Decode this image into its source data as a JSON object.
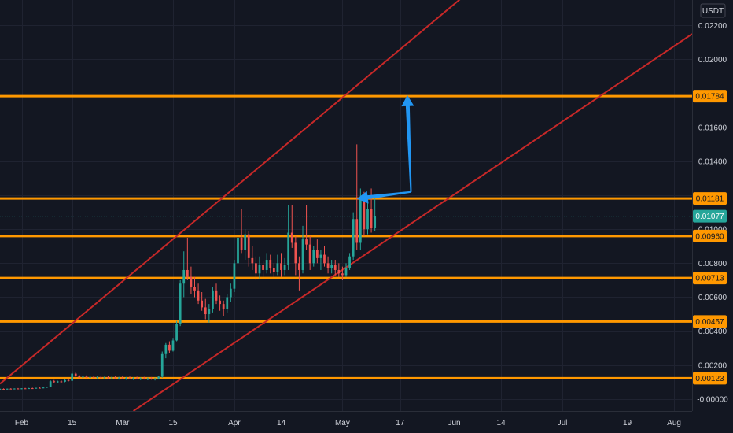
{
  "colors": {
    "background": "#131722",
    "grid": "#1f2331",
    "axis_text": "#d1d4dc",
    "level_line": "#ff9800",
    "channel_line": "#c62828",
    "arrow": "#2196f3",
    "candle_up": "#26a69a",
    "candle_down": "#ef5350",
    "current_price_bg": "#26a69a"
  },
  "chart_data": {
    "type": "candlestick",
    "price_unit": "USDT",
    "ylim": [
      -0.0007,
      0.0235
    ],
    "y_ticks": [
      "0.02200",
      "0.02000",
      "0.01800",
      "0.01600",
      "0.01400",
      "0.01200",
      "0.01000",
      "0.00800",
      "0.00600",
      "0.00400",
      "0.00200",
      "-0.00000"
    ],
    "x_ticks": [
      {
        "label": "Feb",
        "day": 0
      },
      {
        "label": "15",
        "day": 14
      },
      {
        "label": "Mar",
        "day": 28
      },
      {
        "label": "15",
        "day": 42
      },
      {
        "label": "Apr",
        "day": 59
      },
      {
        "label": "14",
        "day": 72
      },
      {
        "label": "May",
        "day": 89
      },
      {
        "label": "17",
        "day": 105
      },
      {
        "label": "Jun",
        "day": 120
      },
      {
        "label": "14",
        "day": 133
      },
      {
        "label": "Jul",
        "day": 150
      },
      {
        "label": "19",
        "day": 168
      },
      {
        "label": "Aug",
        "day": 181
      }
    ],
    "x_range_days": [
      -6,
      186
    ],
    "levels": [
      "0.01784",
      "0.01181",
      "0.00960",
      "0.00713",
      "0.00457",
      "0.00123"
    ],
    "current_price": "0.01077",
    "channel": {
      "upper": [
        [
          -6,
          0.0009
        ],
        [
          127,
          0.0245
        ]
      ],
      "lower": [
        [
          31,
          -0.0007
        ],
        [
          186,
          0.0215
        ]
      ]
    },
    "arrows": [
      {
        "name": "arrow-left",
        "from": [
          108,
          0.0122
        ],
        "to": [
          93,
          0.0118
        ]
      },
      {
        "name": "arrow-up",
        "from": [
          108,
          0.0122
        ],
        "to": [
          107,
          0.0179
        ]
      }
    ],
    "candles": [
      [
        -6,
        0.00058,
        0.00062,
        0.00056,
        0.0006
      ],
      [
        -5,
        0.0006,
        0.00063,
        0.00057,
        0.00059
      ],
      [
        -4,
        0.00059,
        0.00062,
        0.00056,
        0.00061
      ],
      [
        -3,
        0.00061,
        0.00064,
        0.00058,
        0.0006
      ],
      [
        -2,
        0.0006,
        0.00063,
        0.00057,
        0.00062
      ],
      [
        -1,
        0.00062,
        0.00065,
        0.00059,
        0.00061
      ],
      [
        0,
        0.00061,
        0.00064,
        0.00058,
        0.00063
      ],
      [
        1,
        0.00063,
        0.00066,
        0.0006,
        0.00062
      ],
      [
        2,
        0.00062,
        0.00066,
        0.0006,
        0.00064
      ],
      [
        3,
        0.00064,
        0.00067,
        0.00061,
        0.00063
      ],
      [
        4,
        0.00063,
        0.00067,
        0.00061,
        0.00066
      ],
      [
        5,
        0.00066,
        0.0007,
        0.00063,
        0.00065
      ],
      [
        6,
        0.00065,
        0.00069,
        0.00063,
        0.00068
      ],
      [
        7,
        0.00068,
        0.00073,
        0.00066,
        0.00072
      ],
      [
        8,
        0.00072,
        0.0011,
        0.0007,
        0.00105
      ],
      [
        9,
        0.00105,
        0.00112,
        0.00095,
        0.001
      ],
      [
        10,
        0.001,
        0.00108,
        0.00094,
        0.00104
      ],
      [
        11,
        0.00104,
        0.0011,
        0.00098,
        0.00102
      ],
      [
        12,
        0.00102,
        0.00115,
        0.00099,
        0.00112
      ],
      [
        13,
        0.00112,
        0.00118,
        0.00104,
        0.00108
      ],
      [
        14,
        0.00108,
        0.00165,
        0.00106,
        0.0015
      ],
      [
        15,
        0.0015,
        0.0016,
        0.00128,
        0.00135
      ],
      [
        16,
        0.00135,
        0.00142,
        0.00122,
        0.00128
      ],
      [
        17,
        0.00128,
        0.00138,
        0.0012,
        0.00132
      ],
      [
        18,
        0.00132,
        0.0014,
        0.00124,
        0.00126
      ],
      [
        19,
        0.00126,
        0.00136,
        0.00118,
        0.0013
      ],
      [
        20,
        0.0013,
        0.00138,
        0.00122,
        0.00125
      ],
      [
        21,
        0.00125,
        0.00134,
        0.00118,
        0.00129
      ],
      [
        22,
        0.00129,
        0.00137,
        0.00121,
        0.00124
      ],
      [
        23,
        0.00124,
        0.00133,
        0.00117,
        0.00128
      ],
      [
        24,
        0.00128,
        0.00136,
        0.0012,
        0.00123
      ],
      [
        25,
        0.00123,
        0.00132,
        0.00116,
        0.00127
      ],
      [
        26,
        0.00127,
        0.00135,
        0.00119,
        0.00122
      ],
      [
        27,
        0.00122,
        0.00131,
        0.00115,
        0.00126
      ],
      [
        28,
        0.00126,
        0.00134,
        0.00118,
        0.00121
      ],
      [
        29,
        0.00121,
        0.0013,
        0.00114,
        0.00125
      ],
      [
        30,
        0.00125,
        0.00133,
        0.00117,
        0.0012
      ],
      [
        31,
        0.0012,
        0.00129,
        0.00113,
        0.00124
      ],
      [
        32,
        0.00124,
        0.00132,
        0.00116,
        0.00119
      ],
      [
        33,
        0.00119,
        0.00128,
        0.00112,
        0.00123
      ],
      [
        34,
        0.00123,
        0.00131,
        0.00115,
        0.00118
      ],
      [
        35,
        0.00118,
        0.00127,
        0.00111,
        0.00122
      ],
      [
        36,
        0.00122,
        0.0013,
        0.00114,
        0.00117
      ],
      [
        37,
        0.00117,
        0.00126,
        0.0011,
        0.00121
      ],
      [
        38,
        0.00121,
        0.00135,
        0.00118,
        0.00132
      ],
      [
        39,
        0.00132,
        0.0028,
        0.00125,
        0.00265
      ],
      [
        40,
        0.00265,
        0.0033,
        0.0024,
        0.0032
      ],
      [
        41,
        0.0032,
        0.0034,
        0.0027,
        0.00285
      ],
      [
        42,
        0.00285,
        0.0036,
        0.0028,
        0.00345
      ],
      [
        43,
        0.00345,
        0.0046,
        0.0034,
        0.0044
      ],
      [
        44,
        0.0044,
        0.007,
        0.0043,
        0.0068
      ],
      [
        45,
        0.0068,
        0.0087,
        0.006,
        0.0076
      ],
      [
        46,
        0.0076,
        0.0095,
        0.007,
        0.0072
      ],
      [
        47,
        0.0072,
        0.0078,
        0.0062,
        0.0066
      ],
      [
        48,
        0.0066,
        0.0072,
        0.006,
        0.0064
      ],
      [
        49,
        0.0064,
        0.0068,
        0.0056,
        0.0058
      ],
      [
        50,
        0.0058,
        0.0063,
        0.0052,
        0.0054
      ],
      [
        51,
        0.0054,
        0.0059,
        0.0047,
        0.005
      ],
      [
        52,
        0.005,
        0.0056,
        0.0045,
        0.0053
      ],
      [
        53,
        0.0053,
        0.0066,
        0.0051,
        0.0064
      ],
      [
        54,
        0.0064,
        0.0068,
        0.0056,
        0.0058
      ],
      [
        55,
        0.0058,
        0.0061,
        0.0052,
        0.0056
      ],
      [
        56,
        0.0056,
        0.0058,
        0.0049,
        0.0053
      ],
      [
        57,
        0.0053,
        0.0062,
        0.0051,
        0.006
      ],
      [
        58,
        0.006,
        0.0068,
        0.0057,
        0.0065
      ],
      [
        59,
        0.0065,
        0.0082,
        0.0063,
        0.008
      ],
      [
        60,
        0.008,
        0.0099,
        0.0078,
        0.0095
      ],
      [
        61,
        0.0095,
        0.0112,
        0.0086,
        0.0088
      ],
      [
        62,
        0.0088,
        0.01,
        0.0082,
        0.0097
      ],
      [
        63,
        0.0097,
        0.0099,
        0.0078,
        0.0083
      ],
      [
        64,
        0.0083,
        0.009,
        0.0076,
        0.008
      ],
      [
        65,
        0.008,
        0.0084,
        0.007,
        0.0074
      ],
      [
        66,
        0.0074,
        0.0084,
        0.0071,
        0.0079
      ],
      [
        67,
        0.0079,
        0.0081,
        0.0072,
        0.0076
      ],
      [
        68,
        0.0076,
        0.0086,
        0.0074,
        0.0082
      ],
      [
        69,
        0.0082,
        0.0085,
        0.0074,
        0.0077
      ],
      [
        70,
        0.0077,
        0.008,
        0.0072,
        0.0075
      ],
      [
        71,
        0.0075,
        0.0085,
        0.0073,
        0.008
      ],
      [
        72,
        0.008,
        0.0086,
        0.0072,
        0.0076
      ],
      [
        73,
        0.0076,
        0.0083,
        0.0073,
        0.0079
      ],
      [
        74,
        0.0079,
        0.0114,
        0.0076,
        0.0098
      ],
      [
        75,
        0.0098,
        0.0114,
        0.0089,
        0.0092
      ],
      [
        76,
        0.0092,
        0.0096,
        0.0073,
        0.008
      ],
      [
        77,
        0.008,
        0.0084,
        0.0064,
        0.0076
      ],
      [
        78,
        0.0076,
        0.0102,
        0.0074,
        0.0094
      ],
      [
        79,
        0.0094,
        0.0114,
        0.0088,
        0.0091
      ],
      [
        80,
        0.0091,
        0.0096,
        0.0076,
        0.008
      ],
      [
        81,
        0.008,
        0.009,
        0.0078,
        0.0088
      ],
      [
        82,
        0.0088,
        0.0094,
        0.008,
        0.0083
      ],
      [
        83,
        0.0083,
        0.0088,
        0.0076,
        0.0085
      ],
      [
        84,
        0.0085,
        0.009,
        0.0078,
        0.008
      ],
      [
        85,
        0.008,
        0.0084,
        0.0074,
        0.0077
      ],
      [
        86,
        0.0077,
        0.0082,
        0.0074,
        0.0079
      ],
      [
        87,
        0.0079,
        0.0082,
        0.0073,
        0.0076
      ],
      [
        88,
        0.0076,
        0.008,
        0.0072,
        0.0074
      ],
      [
        89,
        0.0074,
        0.0078,
        0.007,
        0.0073
      ],
      [
        90,
        0.0073,
        0.008,
        0.0072,
        0.0077
      ],
      [
        91,
        0.0077,
        0.0086,
        0.0076,
        0.0084
      ],
      [
        92,
        0.0084,
        0.011,
        0.0082,
        0.0106
      ],
      [
        93,
        0.0106,
        0.015,
        0.0088,
        0.0092
      ],
      [
        94,
        0.0092,
        0.0124,
        0.0088,
        0.0118
      ],
      [
        95,
        0.0118,
        0.0122,
        0.0096,
        0.01
      ],
      [
        96,
        0.01,
        0.0118,
        0.0097,
        0.0112
      ],
      [
        97,
        0.0112,
        0.0124,
        0.0098,
        0.0101
      ],
      [
        98,
        0.0101,
        0.0118,
        0.0099,
        0.01077
      ]
    ]
  }
}
